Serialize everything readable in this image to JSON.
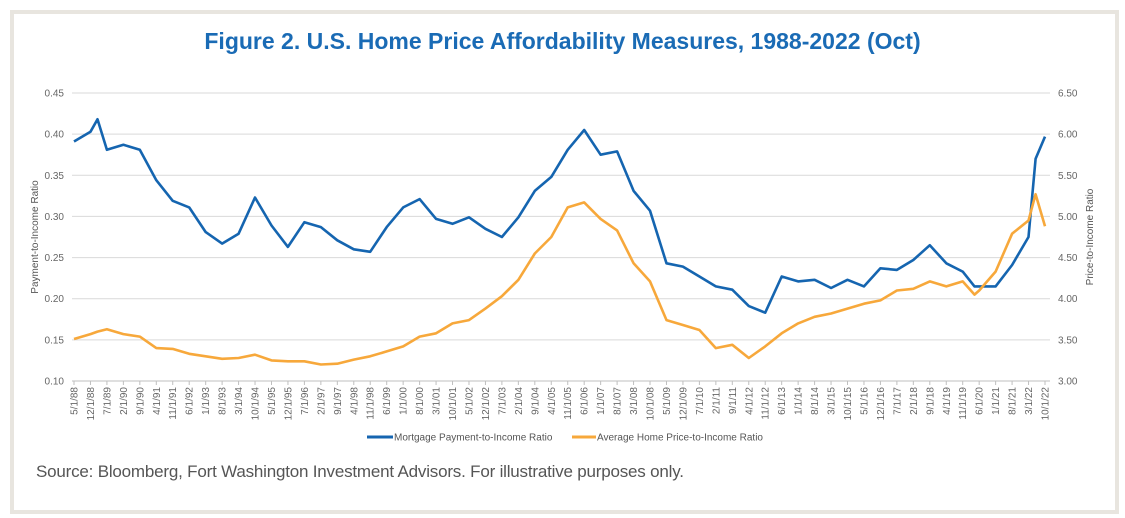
{
  "title": "Figure 2. U.S. Home Price Affordability Measures, 1988-2022 (Oct)",
  "source": "Source: Bloomberg, Fort Washington Investment Advisors. For illustrative purposes only.",
  "colors": {
    "mortgage": "#1565b0",
    "price": "#f7a83b",
    "title": "#1a6bb5",
    "grid": "#d9d9d9"
  },
  "chart_data": {
    "type": "line",
    "grid": true,
    "legend_placement": "bottom",
    "ylabel_left": "Payment-to-Income Ratio",
    "ylabel_right": "Price-to-Income Ratio",
    "ylim_left": [
      0.1,
      0.45
    ],
    "ylim_right": [
      3.0,
      6.5
    ],
    "yticks_left": [
      "0.10",
      "0.15",
      "0.20",
      "0.25",
      "0.30",
      "0.35",
      "0.40",
      "0.45"
    ],
    "yticks_right": [
      "3.00",
      "3.50",
      "4.00",
      "4.50",
      "5.00",
      "5.50",
      "6.00",
      "6.50"
    ],
    "xticks": [
      "5/1/88",
      "12/1/88",
      "7/1/89",
      "2/1/90",
      "9/1/90",
      "4/1/91",
      "11/1/91",
      "6/1/92",
      "1/1/93",
      "8/1/93",
      "3/1/94",
      "10/1/94",
      "5/1/95",
      "12/1/95",
      "7/1/96",
      "2/1/97",
      "9/1/97",
      "4/1/98",
      "11/1/98",
      "6/1/99",
      "1/1/00",
      "8/1/00",
      "3/1/01",
      "10/1/01",
      "5/1/02",
      "12/1/02",
      "7/1/03",
      "2/1/04",
      "9/1/04",
      "4/1/05",
      "11/1/05",
      "6/1/06",
      "1/1/07",
      "8/1/07",
      "3/1/08",
      "10/1/08",
      "5/1/09",
      "12/1/09",
      "7/1/10",
      "2/1/11",
      "9/1/11",
      "4/1/12",
      "11/1/12",
      "6/1/13",
      "1/1/14",
      "8/1/14",
      "3/1/15",
      "10/1/15",
      "5/1/16",
      "12/1/16",
      "7/1/17",
      "2/1/18",
      "9/1/18",
      "4/1/19",
      "11/1/19",
      "6/1/20",
      "1/1/21",
      "8/1/21",
      "3/1/22",
      "10/1/22"
    ],
    "x": [
      "5/1/88",
      "12/1/88",
      "3/1/89",
      "7/1/89",
      "2/1/90",
      "9/1/90",
      "4/1/91",
      "11/1/91",
      "6/1/92",
      "1/1/93",
      "8/1/93",
      "3/1/94",
      "10/1/94",
      "5/1/95",
      "12/1/95",
      "7/1/96",
      "2/1/97",
      "9/1/97",
      "4/1/98",
      "11/1/98",
      "6/1/99",
      "1/1/00",
      "8/1/00",
      "3/1/01",
      "10/1/01",
      "5/1/02",
      "12/1/02",
      "7/1/03",
      "2/1/04",
      "9/1/04",
      "4/1/05",
      "11/1/05",
      "6/1/06",
      "1/1/07",
      "8/1/07",
      "3/1/08",
      "10/1/08",
      "5/1/09",
      "12/1/09",
      "7/1/10",
      "2/1/11",
      "9/1/11",
      "4/1/12",
      "11/1/12",
      "6/1/13",
      "1/1/14",
      "8/1/14",
      "3/1/15",
      "10/1/15",
      "5/1/16",
      "12/1/16",
      "7/1/17",
      "2/1/18",
      "9/1/18",
      "4/1/19",
      "11/1/19",
      "4/1/20",
      "6/1/20",
      "1/1/21",
      "8/1/21",
      "3/1/22",
      "6/1/22",
      "10/1/22"
    ],
    "series": [
      {
        "name": "Mortgage Payment-to-Income Ratio",
        "axis": "left",
        "values": [
          0.391,
          0.403,
          0.418,
          0.381,
          0.387,
          0.381,
          0.344,
          0.319,
          0.311,
          0.281,
          0.267,
          0.279,
          0.323,
          0.289,
          0.263,
          0.293,
          0.287,
          0.271,
          0.26,
          0.257,
          0.287,
          0.311,
          0.321,
          0.297,
          0.291,
          0.299,
          0.285,
          0.275,
          0.299,
          0.331,
          0.348,
          0.381,
          0.405,
          0.375,
          0.379,
          0.331,
          0.307,
          0.243,
          0.239,
          0.227,
          0.215,
          0.211,
          0.191,
          0.183,
          0.227,
          0.221,
          0.223,
          0.213,
          0.223,
          0.215,
          0.237,
          0.235,
          0.247,
          0.265,
          0.243,
          0.233,
          0.215,
          0.215,
          0.215,
          0.241,
          0.275,
          0.37,
          0.397
        ]
      },
      {
        "name": "Average Home Price-to-Income Ratio",
        "axis": "right",
        "values": [
          3.51,
          3.57,
          3.6,
          3.63,
          3.57,
          3.54,
          3.4,
          3.39,
          3.33,
          3.3,
          3.27,
          3.28,
          3.32,
          3.25,
          3.24,
          3.24,
          3.2,
          3.21,
          3.26,
          3.3,
          3.36,
          3.42,
          3.54,
          3.58,
          3.7,
          3.74,
          3.88,
          4.03,
          4.23,
          4.55,
          4.75,
          5.11,
          5.17,
          4.97,
          4.83,
          4.43,
          4.21,
          3.74,
          3.68,
          3.62,
          3.4,
          3.44,
          3.28,
          3.42,
          3.58,
          3.7,
          3.78,
          3.82,
          3.88,
          3.94,
          3.98,
          4.1,
          4.12,
          4.21,
          4.15,
          4.21,
          4.05,
          4.1,
          4.33,
          4.79,
          4.95,
          5.27,
          4.88
        ]
      }
    ]
  }
}
